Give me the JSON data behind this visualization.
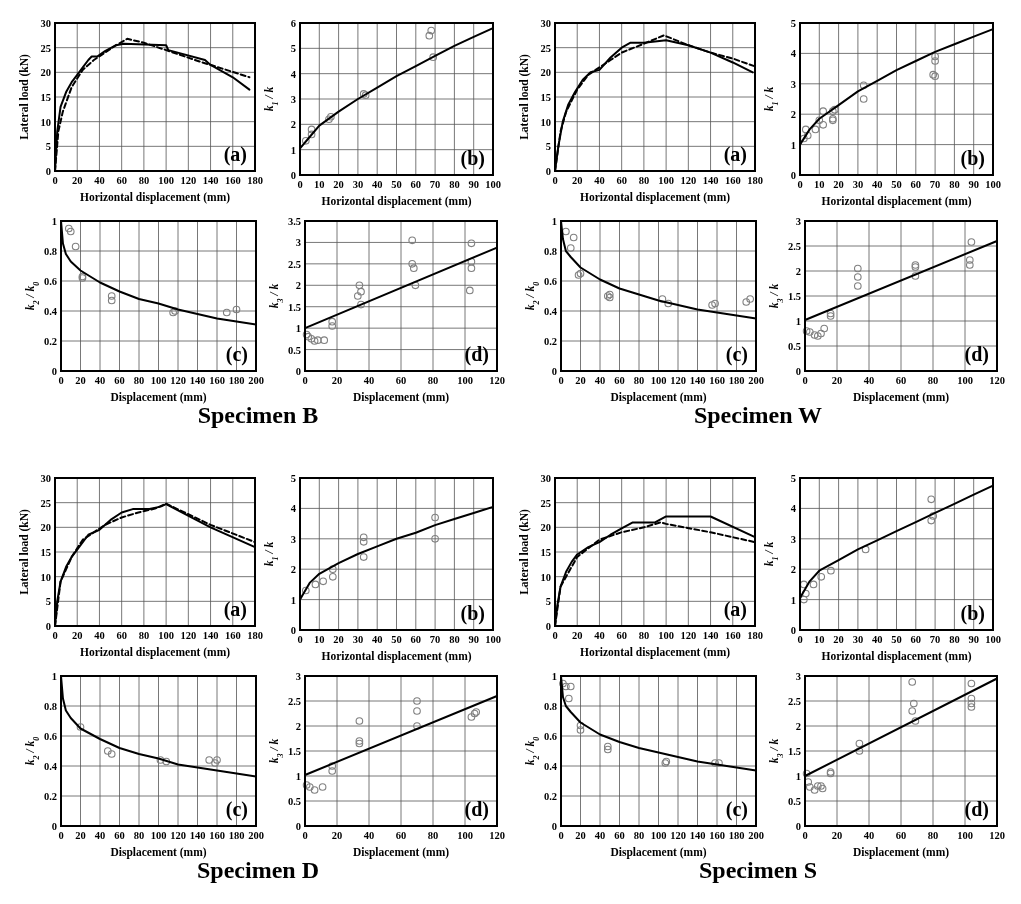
{
  "chart_data": [
    {
      "type": "line",
      "xlabel": "Horizontal displacement (mm)",
      "ylabel": "Lateral load (kN)",
      "xlim": [
        0,
        180
      ],
      "xticks": [
        0,
        20,
        40,
        60,
        80,
        100,
        120,
        140,
        160,
        180
      ],
      "ylim": [
        0,
        30
      ],
      "yticks": [
        0,
        5,
        10,
        15,
        20,
        25,
        30
      ],
      "grid": true,
      "annotations": [
        "(a)",
        "Specimen  B"
      ],
      "series": [
        {
          "color": "#000000",
          "line_style": "solid",
          "x": [
            0,
            2,
            5,
            10,
            15,
            20,
            25,
            30,
            33,
            38,
            45,
            55,
            62,
            100,
            102,
            135,
            140,
            160,
            175
          ],
          "values": [
            0,
            8,
            13,
            16,
            18,
            19.5,
            21,
            22.5,
            23.2,
            23.2,
            24.3,
            25.5,
            25.8,
            25.5,
            24.5,
            22.5,
            21.5,
            19,
            16.5
          ]
        },
        {
          "color": "#000000",
          "line_style": "dashed",
          "x": [
            0,
            3,
            7,
            15,
            25,
            35,
            45,
            55,
            65,
            80,
            100,
            130,
            150,
            175
          ],
          "values": [
            0,
            8,
            12,
            17,
            20.5,
            22.5,
            24,
            25.5,
            26.8,
            26,
            24.5,
            22.2,
            20.8,
            19
          ]
        }
      ]
    },
    {
      "type": "scatter",
      "xlabel": "Horizontal displacement (mm)",
      "ylabel": "k$_{1}$ / k",
      "xlim": [
        0,
        100
      ],
      "xticks": [
        0,
        10,
        20,
        30,
        40,
        50,
        60,
        70,
        80,
        90,
        100
      ],
      "ylim": [
        0,
        6
      ],
      "yticks": [
        0,
        1,
        2,
        3,
        4,
        5,
        6
      ],
      "grid": true,
      "annotations": [
        "(b)"
      ],
      "series": [
        {
          "marker": "circle",
          "color": "#808080",
          "x": [
            3,
            6,
            6,
            15,
            16,
            33,
            34,
            67,
            68,
            69
          ],
          "values": [
            1.35,
            1.6,
            1.8,
            2.2,
            2.3,
            3.2,
            3.15,
            5.5,
            5.7,
            4.65
          ]
        },
        {
          "type": "line",
          "color": "#000000",
          "x": [
            0,
            5,
            10,
            20,
            30,
            40,
            50,
            60,
            70,
            80,
            90,
            100
          ],
          "values": [
            1.05,
            1.5,
            1.95,
            2.5,
            3.0,
            3.45,
            3.9,
            4.3,
            4.7,
            5.1,
            5.45,
            5.8
          ]
        }
      ]
    },
    {
      "type": "scatter",
      "xlabel": "Displacement (mm)",
      "ylabel": "k$_{2}$ / k$_{0}$",
      "xlim": [
        0,
        200
      ],
      "xticks": [
        0,
        20,
        40,
        60,
        80,
        100,
        120,
        140,
        160,
        180,
        200
      ],
      "ylim": [
        0,
        1
      ],
      "yticks": [
        0,
        0.2,
        0.4,
        0.6,
        0.8,
        1
      ],
      "grid": true,
      "annotations": [
        "(c)"
      ],
      "series": [
        {
          "marker": "circle",
          "color": "#808080",
          "x": [
            8,
            10,
            15,
            22,
            22,
            52,
            52,
            115,
            117,
            170,
            180
          ],
          "values": [
            0.95,
            0.93,
            0.83,
            0.62,
            0.63,
            0.5,
            0.47,
            0.39,
            0.4,
            0.39,
            0.41
          ]
        },
        {
          "type": "line",
          "color": "#000000",
          "x": [
            0,
            2,
            5,
            10,
            20,
            40,
            60,
            80,
            100,
            120,
            140,
            160,
            180,
            200
          ],
          "values": [
            1.0,
            0.85,
            0.78,
            0.73,
            0.67,
            0.59,
            0.53,
            0.48,
            0.45,
            0.41,
            0.38,
            0.35,
            0.33,
            0.31
          ]
        }
      ]
    },
    {
      "type": "scatter",
      "xlabel": "Displacement (mm)",
      "ylabel": "k$_{3}$ / k",
      "xlim": [
        0,
        120
      ],
      "xticks": [
        0,
        20,
        40,
        60,
        80,
        100,
        120
      ],
      "ylim": [
        0,
        3.5
      ],
      "yticks": [
        0,
        0.5,
        1,
        1.5,
        2,
        2.5,
        3,
        3.5
      ],
      "grid": true,
      "annotations": [
        "(d)"
      ],
      "series": [
        {
          "marker": "circle",
          "color": "#808080",
          "x": [
            1,
            2,
            4,
            6,
            8,
            12,
            17,
            17,
            33,
            34,
            35,
            35,
            67,
            67,
            68,
            69,
            104,
            104,
            104,
            103
          ],
          "values": [
            0.85,
            0.8,
            0.75,
            0.7,
            0.72,
            0.72,
            1.05,
            1.15,
            1.75,
            2.0,
            1.85,
            1.55,
            3.05,
            2.5,
            2.4,
            2.0,
            2.98,
            2.55,
            2.4,
            1.88
          ]
        },
        {
          "type": "line",
          "color": "#000000",
          "x": [
            0,
            120
          ],
          "values": [
            1.0,
            2.88
          ]
        }
      ]
    },
    {
      "type": "line",
      "xlabel": "Horizontal displacement (mm)",
      "ylabel": "Lateral load (kN)",
      "xlim": [
        0,
        180
      ],
      "xticks": [
        0,
        20,
        40,
        60,
        80,
        100,
        120,
        140,
        160,
        180
      ],
      "ylim": [
        0,
        30
      ],
      "yticks": [
        0,
        5,
        10,
        15,
        20,
        25,
        30
      ],
      "grid": true,
      "annotations": [
        "(a)",
        "Specimen  W"
      ],
      "series": [
        {
          "color": "#000000",
          "line_style": "solid",
          "x": [
            0,
            3,
            7,
            12,
            18,
            25,
            32,
            40,
            50,
            60,
            68,
            80,
            100,
            120,
            140,
            160,
            178
          ],
          "values": [
            0,
            5,
            10,
            13.5,
            16,
            18.5,
            20,
            20.5,
            23,
            25,
            26,
            26,
            26.5,
            25.5,
            24,
            22,
            20
          ]
        },
        {
          "color": "#000000",
          "line_style": "dashed",
          "x": [
            0,
            5,
            10,
            20,
            30,
            40,
            50,
            60,
            80,
            98,
            120,
            140,
            160,
            180
          ],
          "values": [
            0,
            8,
            12,
            16.5,
            19.5,
            21,
            22.5,
            24,
            25.8,
            27.5,
            25.5,
            24,
            22.8,
            21.2
          ]
        }
      ]
    },
    {
      "type": "scatter",
      "xlabel": "Horizontal displacement (mm)",
      "ylabel": "k$_{1}$ / k",
      "xlim": [
        0,
        100
      ],
      "xticks": [
        0,
        10,
        20,
        30,
        40,
        50,
        60,
        70,
        80,
        90,
        100
      ],
      "ylim": [
        0,
        5
      ],
      "yticks": [
        0,
        1,
        2,
        3,
        4,
        5
      ],
      "grid": true,
      "annotations": [
        "(b)"
      ],
      "series": [
        {
          "marker": "circle",
          "color": "#808080",
          "x": [
            2,
            3,
            4,
            8,
            10,
            12,
            12,
            17,
            17,
            17,
            18,
            33,
            33,
            70,
            70,
            69,
            70
          ],
          "values": [
            1.2,
            1.5,
            1.3,
            1.5,
            1.8,
            1.65,
            2.1,
            1.8,
            1.85,
            2.1,
            2.15,
            2.95,
            2.5,
            3.9,
            3.75,
            3.3,
            3.25
          ]
        },
        {
          "type": "line",
          "color": "#000000",
          "x": [
            0,
            5,
            10,
            20,
            30,
            40,
            50,
            60,
            70,
            80,
            90,
            100
          ],
          "values": [
            1.0,
            1.5,
            1.85,
            2.3,
            2.75,
            3.1,
            3.45,
            3.75,
            4.05,
            4.3,
            4.55,
            4.8
          ]
        }
      ]
    },
    {
      "type": "scatter",
      "xlabel": "Displacement (mm)",
      "ylabel": "k$_{2}$ / k$_{0}$",
      "xlim": [
        0,
        200
      ],
      "xticks": [
        0,
        20,
        40,
        60,
        80,
        100,
        120,
        140,
        160,
        180,
        200
      ],
      "ylim": [
        0,
        1
      ],
      "yticks": [
        0,
        0.2,
        0.4,
        0.6,
        0.8,
        1
      ],
      "grid": true,
      "annotations": [
        "(c)"
      ],
      "series": [
        {
          "marker": "circle",
          "color": "#808080",
          "x": [
            5,
            10,
            13,
            18,
            20,
            48,
            50,
            50,
            104,
            110,
            155,
            158,
            190,
            194
          ],
          "values": [
            0.93,
            0.82,
            0.89,
            0.64,
            0.65,
            0.5,
            0.51,
            0.49,
            0.48,
            0.45,
            0.44,
            0.45,
            0.46,
            0.48
          ]
        },
        {
          "type": "line",
          "color": "#000000",
          "x": [
            0,
            2,
            5,
            10,
            20,
            40,
            60,
            80,
            100,
            120,
            140,
            160,
            180,
            200
          ],
          "values": [
            1,
            0.88,
            0.8,
            0.76,
            0.69,
            0.61,
            0.55,
            0.51,
            0.47,
            0.44,
            0.41,
            0.39,
            0.37,
            0.35
          ]
        }
      ]
    },
    {
      "type": "scatter",
      "xlabel": "Displacement (mm)",
      "ylabel": "k$_{3}$ / k",
      "xlim": [
        0,
        120
      ],
      "xticks": [
        0,
        20,
        40,
        60,
        80,
        100,
        120
      ],
      "ylim": [
        0,
        3
      ],
      "yticks": [
        0,
        0.5,
        1,
        1.5,
        2,
        2.5,
        3
      ],
      "grid": true,
      "annotations": [
        "(d)"
      ],
      "series": [
        {
          "marker": "circle",
          "color": "#808080",
          "x": [
            1,
            3,
            6,
            8,
            10,
            12,
            16,
            16,
            33,
            33,
            33,
            69,
            69,
            69,
            104,
            103,
            103
          ],
          "values": [
            0.8,
            0.78,
            0.72,
            0.7,
            0.75,
            0.85,
            1.1,
            1.15,
            2.05,
            1.88,
            1.7,
            2.12,
            2.08,
            1.9,
            2.58,
            2.22,
            2.12
          ]
        },
        {
          "type": "line",
          "color": "#000000",
          "x": [
            0,
            120
          ],
          "values": [
            1.02,
            2.6
          ]
        }
      ]
    },
    {
      "type": "line",
      "xlabel": "Horizontal displacement (mm)",
      "ylabel": "Lateral load (kN)",
      "xlim": [
        0,
        180
      ],
      "xticks": [
        0,
        20,
        40,
        60,
        80,
        100,
        120,
        140,
        160,
        180
      ],
      "ylim": [
        0,
        30
      ],
      "yticks": [
        0,
        5,
        10,
        15,
        20,
        25,
        30
      ],
      "grid": true,
      "annotations": [
        "(a)",
        "Specimen  D"
      ],
      "series": [
        {
          "color": "#000000",
          "line_style": "solid",
          "x": [
            0,
            2,
            5,
            10,
            15,
            20,
            30,
            40,
            50,
            60,
            70,
            85,
            95,
            100,
            140,
            180
          ],
          "values": [
            0,
            5,
            9,
            12,
            14,
            15.5,
            18.5,
            19.5,
            21.5,
            23,
            23.7,
            23.7,
            24.2,
            24.7,
            20,
            16
          ]
        },
        {
          "color": "#000000",
          "line_style": "dashed",
          "x": [
            0,
            5,
            15,
            25,
            35,
            45,
            60,
            75,
            90,
            100,
            140,
            180
          ],
          "values": [
            0,
            9,
            14,
            17.5,
            19,
            20.5,
            22,
            23,
            23.8,
            24.8,
            20.5,
            17
          ]
        }
      ]
    },
    {
      "type": "scatter",
      "xlabel": "Horizontal displacement (mm)",
      "ylabel": "k$_{1}$ / k",
      "xlim": [
        0,
        100
      ],
      "xticks": [
        0,
        10,
        20,
        30,
        40,
        50,
        60,
        70,
        80,
        90,
        100
      ],
      "ylim": [
        0,
        5
      ],
      "yticks": [
        0,
        1,
        2,
        3,
        4,
        5
      ],
      "grid": true,
      "annotations": [
        "(b)"
      ],
      "series": [
        {
          "marker": "circle",
          "color": "#808080",
          "x": [
            3,
            8,
            12,
            17,
            17,
            33,
            33,
            33,
            70,
            70
          ],
          "values": [
            1.3,
            1.5,
            1.6,
            1.75,
            2.0,
            3.05,
            2.9,
            2.4,
            3.7,
            3.0
          ]
        },
        {
          "type": "line",
          "color": "#000000",
          "x": [
            0,
            5,
            10,
            20,
            30,
            40,
            50,
            60,
            70,
            80,
            90,
            100
          ],
          "values": [
            1.0,
            1.55,
            1.85,
            2.2,
            2.5,
            2.75,
            3.0,
            3.2,
            3.45,
            3.65,
            3.85,
            4.05
          ]
        }
      ]
    },
    {
      "type": "scatter",
      "xlabel": "Displacement (mm)",
      "ylabel": "k$_{2}$ / k$_{0}$",
      "xlim": [
        0,
        200
      ],
      "xticks": [
        0,
        20,
        40,
        60,
        80,
        100,
        120,
        140,
        160,
        180,
        200
      ],
      "ylim": [
        0,
        1
      ],
      "yticks": [
        0,
        0.2,
        0.4,
        0.6,
        0.8,
        1
      ],
      "grid": true,
      "annotations": [
        "(c)"
      ],
      "series": [
        {
          "marker": "circle",
          "color": "#808080",
          "x": [
            20,
            48,
            52,
            102,
            108,
            152,
            158,
            160
          ],
          "values": [
            0.66,
            0.5,
            0.48,
            0.44,
            0.43,
            0.44,
            0.42,
            0.44
          ]
        },
        {
          "type": "line",
          "color": "#000000",
          "x": [
            0,
            2,
            5,
            10,
            20,
            40,
            60,
            80,
            100,
            120,
            140,
            160,
            180,
            200
          ],
          "values": [
            1,
            0.85,
            0.77,
            0.72,
            0.65,
            0.58,
            0.52,
            0.48,
            0.45,
            0.41,
            0.39,
            0.37,
            0.35,
            0.33
          ]
        }
      ]
    },
    {
      "type": "scatter",
      "xlabel": "Displacement (mm)",
      "ylabel": "k$_{3}$ / k",
      "xlim": [
        0,
        120
      ],
      "xticks": [
        0,
        20,
        40,
        60,
        80,
        100,
        120
      ],
      "ylim": [
        0,
        3
      ],
      "yticks": [
        0,
        0.5,
        1,
        1.5,
        2,
        2.5,
        3
      ],
      "grid": true,
      "annotations": [
        "(d)"
      ],
      "series": [
        {
          "marker": "circle",
          "color": "#808080",
          "x": [
            1,
            3,
            6,
            11,
            17,
            17,
            34,
            34,
            34,
            70,
            70,
            70,
            104,
            106,
            107
          ],
          "values": [
            0.82,
            0.78,
            0.72,
            0.78,
            1.1,
            1.2,
            2.1,
            1.7,
            1.65,
            2.5,
            2.3,
            2.0,
            2.18,
            2.25,
            2.28
          ]
        },
        {
          "type": "line",
          "color": "#000000",
          "x": [
            0,
            120
          ],
          "values": [
            1.02,
            2.6
          ]
        }
      ]
    },
    {
      "type": "line",
      "xlabel": "Horizontal displacement (mm)",
      "ylabel": "Lateral load (kN)",
      "xlim": [
        0,
        180
      ],
      "xticks": [
        0,
        20,
        40,
        60,
        80,
        100,
        120,
        140,
        160,
        180
      ],
      "ylim": [
        0,
        30
      ],
      "yticks": [
        0,
        5,
        10,
        15,
        20,
        25,
        30
      ],
      "grid": true,
      "annotations": [
        "(a)",
        "Specimen  S"
      ],
      "series": [
        {
          "color": "#000000",
          "line_style": "solid",
          "x": [
            0,
            2,
            5,
            10,
            15,
            20,
            30,
            40,
            50,
            60,
            70,
            90,
            100,
            140,
            180
          ],
          "values": [
            0,
            4,
            8,
            11,
            13,
            14.5,
            16,
            17,
            18.5,
            19.8,
            21,
            21,
            22.2,
            22.2,
            18
          ]
        },
        {
          "color": "#000000",
          "line_style": "dashed",
          "x": [
            0,
            5,
            20,
            40,
            60,
            80,
            95,
            100,
            140,
            180
          ],
          "values": [
            0,
            8,
            14,
            17.5,
            19,
            20,
            21,
            20.7,
            19,
            17
          ]
        }
      ]
    },
    {
      "type": "scatter",
      "xlabel": "Horizontal displacement (mm)",
      "ylabel": "k$_{1}$ / k",
      "xlim": [
        0,
        100
      ],
      "xticks": [
        0,
        10,
        20,
        30,
        40,
        50,
        60,
        70,
        80,
        90,
        100
      ],
      "ylim": [
        0,
        5
      ],
      "yticks": [
        0,
        1,
        2,
        3,
        4,
        5
      ],
      "grid": true,
      "annotations": [
        "(b)"
      ],
      "series": [
        {
          "marker": "circle",
          "color": "#808080",
          "x": [
            2,
            2,
            3,
            7,
            11,
            16,
            34,
            68,
            68,
            69
          ],
          "values": [
            1.0,
            1.5,
            1.2,
            1.5,
            1.75,
            1.95,
            2.65,
            4.3,
            3.6,
            3.75
          ]
        },
        {
          "type": "line",
          "color": "#000000",
          "x": [
            0,
            5,
            10,
            20,
            30,
            40,
            50,
            60,
            70,
            80,
            90,
            100
          ],
          "values": [
            1.05,
            1.6,
            1.95,
            2.3,
            2.65,
            2.95,
            3.25,
            3.55,
            3.85,
            4.15,
            4.45,
            4.75
          ]
        }
      ]
    },
    {
      "type": "scatter",
      "xlabel": "Displacement (mm)",
      "ylabel": "k$_{2}$ / k$_{0}$",
      "xlim": [
        0,
        200
      ],
      "xticks": [
        0,
        20,
        40,
        60,
        80,
        100,
        120,
        140,
        160,
        180,
        200
      ],
      "ylim": [
        0,
        1
      ],
      "yticks": [
        0,
        0.2,
        0.4,
        0.6,
        0.8,
        1
      ],
      "grid": true,
      "annotations": [
        "(c)"
      ],
      "series": [
        {
          "marker": "circle",
          "color": "#808080",
          "x": [
            2,
            5,
            8,
            10,
            20,
            20,
            48,
            48,
            107,
            108,
            158,
            162
          ],
          "values": [
            0.95,
            0.93,
            0.85,
            0.93,
            0.67,
            0.64,
            0.53,
            0.51,
            0.42,
            0.43,
            0.42,
            0.42
          ]
        },
        {
          "type": "line",
          "color": "#000000",
          "x": [
            0,
            2,
            5,
            10,
            20,
            40,
            60,
            80,
            100,
            120,
            140,
            160,
            180,
            200
          ],
          "values": [
            1,
            0.86,
            0.8,
            0.76,
            0.69,
            0.61,
            0.56,
            0.52,
            0.49,
            0.46,
            0.43,
            0.41,
            0.39,
            0.37
          ]
        }
      ]
    },
    {
      "type": "scatter",
      "xlabel": "Displacement (mm)",
      "ylabel": "k$_{3}$ / k",
      "xlim": [
        0,
        120
      ],
      "xticks": [
        0,
        20,
        40,
        60,
        80,
        100,
        120
      ],
      "ylim": [
        0,
        3
      ],
      "yticks": [
        0,
        0.5,
        1,
        1.5,
        2,
        2.5,
        3
      ],
      "grid": true,
      "annotations": [
        "(d)"
      ],
      "series": [
        {
          "marker": "circle",
          "color": "#808080",
          "x": [
            1,
            2,
            3,
            6,
            8,
            10,
            11,
            16,
            16,
            34,
            34,
            67,
            67,
            68,
            69,
            104,
            104,
            104,
            104
          ],
          "values": [
            1.05,
            0.88,
            0.78,
            0.72,
            0.8,
            0.8,
            0.75,
            1.08,
            1.05,
            1.65,
            1.5,
            2.88,
            2.3,
            2.45,
            2.1,
            2.85,
            2.55,
            2.45,
            2.38
          ]
        },
        {
          "type": "line",
          "color": "#000000",
          "x": [
            0,
            120
          ],
          "values": [
            1.0,
            2.95
          ]
        }
      ]
    }
  ]
}
